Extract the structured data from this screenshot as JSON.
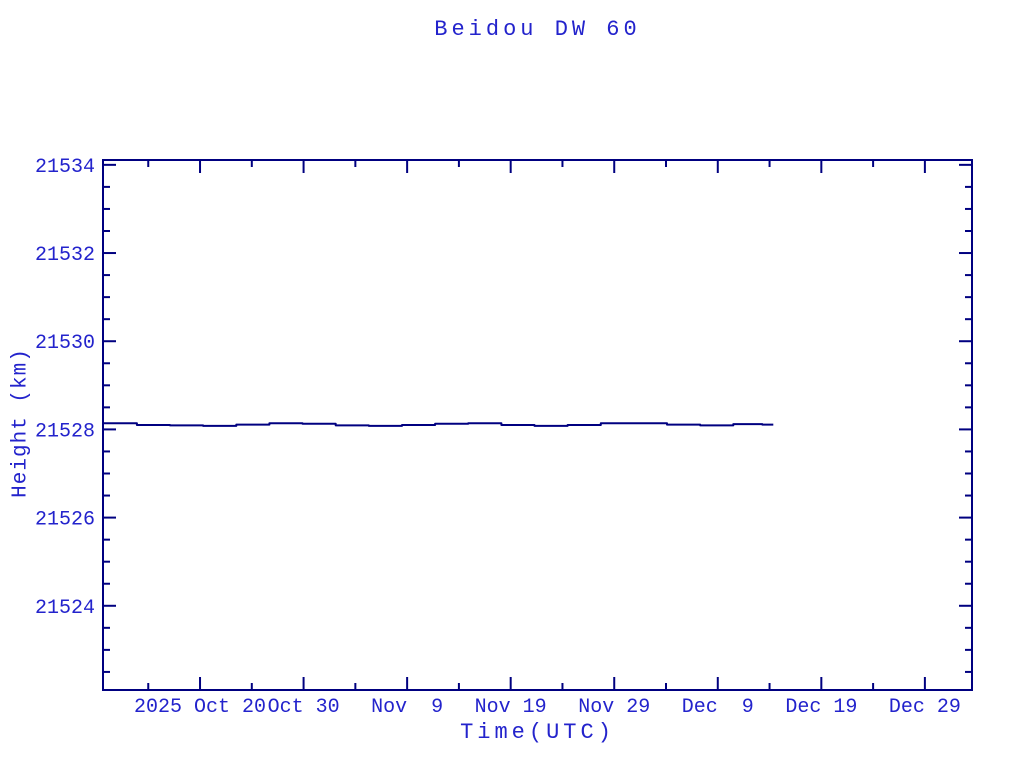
{
  "page": {
    "background": "#ffffff"
  },
  "colors": {
    "frame": "#000080",
    "line": "#000080",
    "text": "#2323cc"
  },
  "chart_data": {
    "type": "line",
    "title": "Beidou DW 60",
    "xlabel": "Time(UTC)",
    "ylabel": "Height (km)",
    "legend": "none",
    "grid": false,
    "x_axis": {
      "unit": "date (days since 2025-09-30)",
      "range": [
        10.63,
        94.55
      ],
      "major_ticks": [
        {
          "day": 20,
          "label": "2025 Oct 20"
        },
        {
          "day": 30,
          "label": "Oct 30"
        },
        {
          "day": 40,
          "label": "Nov  9"
        },
        {
          "day": 50,
          "label": "Nov 19"
        },
        {
          "day": 60,
          "label": "Nov 29"
        },
        {
          "day": 70,
          "label": "Dec  9"
        },
        {
          "day": 80,
          "label": "Dec 19"
        },
        {
          "day": 90,
          "label": "Dec 29"
        }
      ],
      "minor_ticks": [
        15,
        25,
        35,
        45,
        55,
        65,
        75,
        85
      ]
    },
    "y_axis": {
      "unit": "km",
      "range": [
        21522.09,
        21534.11
      ],
      "major_ticks": [
        21524,
        21526,
        21528,
        21530,
        21532,
        21534
      ],
      "minor_tick_step": 0.5
    },
    "series": [
      {
        "name": "Beidou DW 60 height",
        "color": "#000080",
        "style": "step",
        "points": [
          [
            10.63,
            21528.14
          ],
          [
            13.9,
            21528.1
          ],
          [
            17.1,
            21528.09
          ],
          [
            20.3,
            21528.08
          ],
          [
            23.5,
            21528.11
          ],
          [
            26.7,
            21528.14
          ],
          [
            29.9,
            21528.13
          ],
          [
            33.1,
            21528.09
          ],
          [
            36.3,
            21528.08
          ],
          [
            39.5,
            21528.1
          ],
          [
            42.7,
            21528.13
          ],
          [
            45.9,
            21528.14
          ],
          [
            49.1,
            21528.1
          ],
          [
            52.3,
            21528.08
          ],
          [
            55.5,
            21528.1
          ],
          [
            58.7,
            21528.14
          ],
          [
            61.9,
            21528.14
          ],
          [
            65.1,
            21528.11
          ],
          [
            68.3,
            21528.09
          ],
          [
            71.5,
            21528.12
          ],
          [
            74.3,
            21528.11
          ],
          [
            75.36,
            21528.11
          ]
        ]
      }
    ]
  }
}
